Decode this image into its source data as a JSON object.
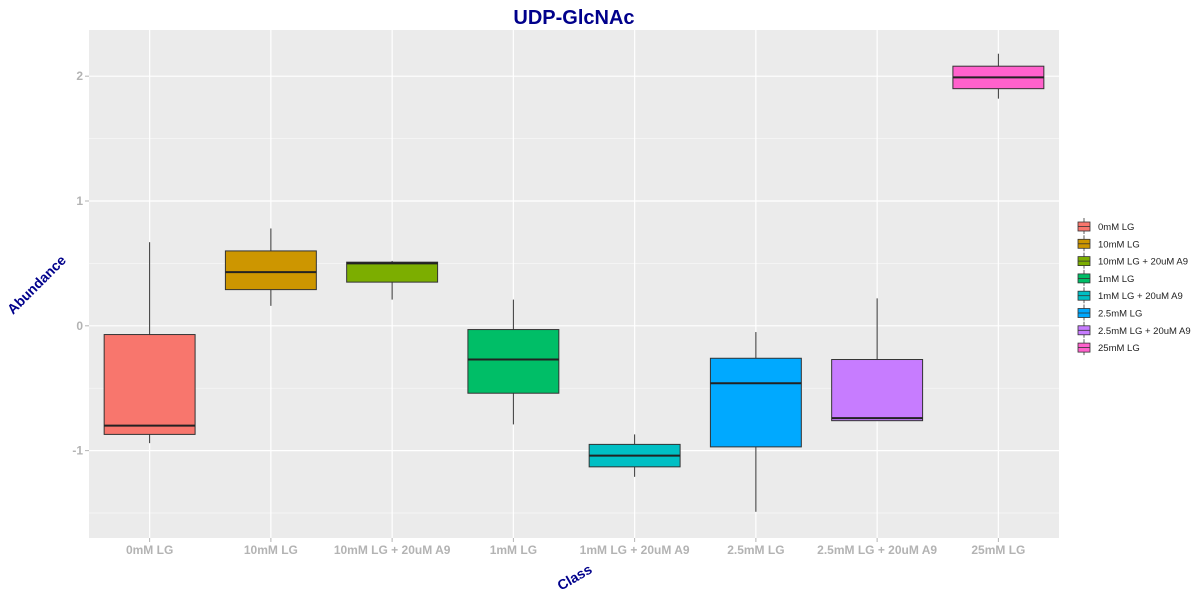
{
  "chart_data": {
    "type": "box",
    "title": "UDP-GlcNAc",
    "xlabel": "Class",
    "ylabel": "Abundance",
    "ylim": [
      -1.7,
      2.37
    ],
    "yticks": [
      -1,
      0,
      1,
      2
    ],
    "grid": true,
    "legend_position": "right",
    "categories": [
      "0mM LG",
      "10mM LG",
      "10mM LG + 20uM A9",
      "1mM LG",
      "1mM LG + 20uM A9",
      "2.5mM LG",
      "2.5mM LG + 20uM A9",
      "25mM LG"
    ],
    "colors": [
      "#F8766D",
      "#CD9600",
      "#7CAE00",
      "#00BE67",
      "#00BFC4",
      "#00A9FF",
      "#C77CFF",
      "#FF61CC"
    ],
    "boxes": [
      {
        "whisker_low": -0.94,
        "q1": -0.87,
        "median": -0.8,
        "q3": -0.07,
        "whisker_high": 0.67
      },
      {
        "whisker_low": 0.16,
        "q1": 0.29,
        "median": 0.43,
        "q3": 0.6,
        "whisker_high": 0.78
      },
      {
        "whisker_low": 0.21,
        "q1": 0.35,
        "median": 0.5,
        "q3": 0.51,
        "whisker_high": 0.52
      },
      {
        "whisker_low": -0.79,
        "q1": -0.54,
        "median": -0.27,
        "q3": -0.03,
        "whisker_high": 0.21
      },
      {
        "whisker_low": -1.21,
        "q1": -1.13,
        "median": -1.04,
        "q3": -0.95,
        "whisker_high": -0.87
      },
      {
        "whisker_low": -1.49,
        "q1": -0.97,
        "median": -0.46,
        "q3": -0.26,
        "whisker_high": -0.05
      },
      {
        "whisker_low": -0.76,
        "q1": -0.76,
        "median": -0.74,
        "q3": -0.27,
        "whisker_high": 0.22
      },
      {
        "whisker_low": 1.82,
        "q1": 1.9,
        "median": 1.99,
        "q3": 2.08,
        "whisker_high": 2.18
      }
    ]
  }
}
